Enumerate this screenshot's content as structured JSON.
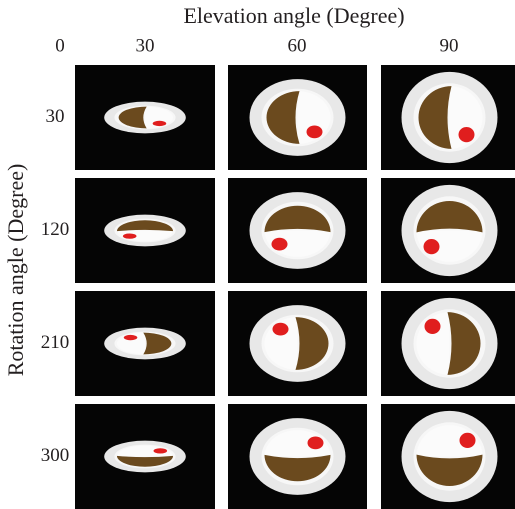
{
  "header": {
    "title": "Elevation angle (Degree)",
    "columns": [
      "0",
      "30",
      "60",
      "90"
    ]
  },
  "side": {
    "title": "Rotation angle (Degree)",
    "rows": [
      "30",
      "120",
      "210",
      "300"
    ]
  }
}
